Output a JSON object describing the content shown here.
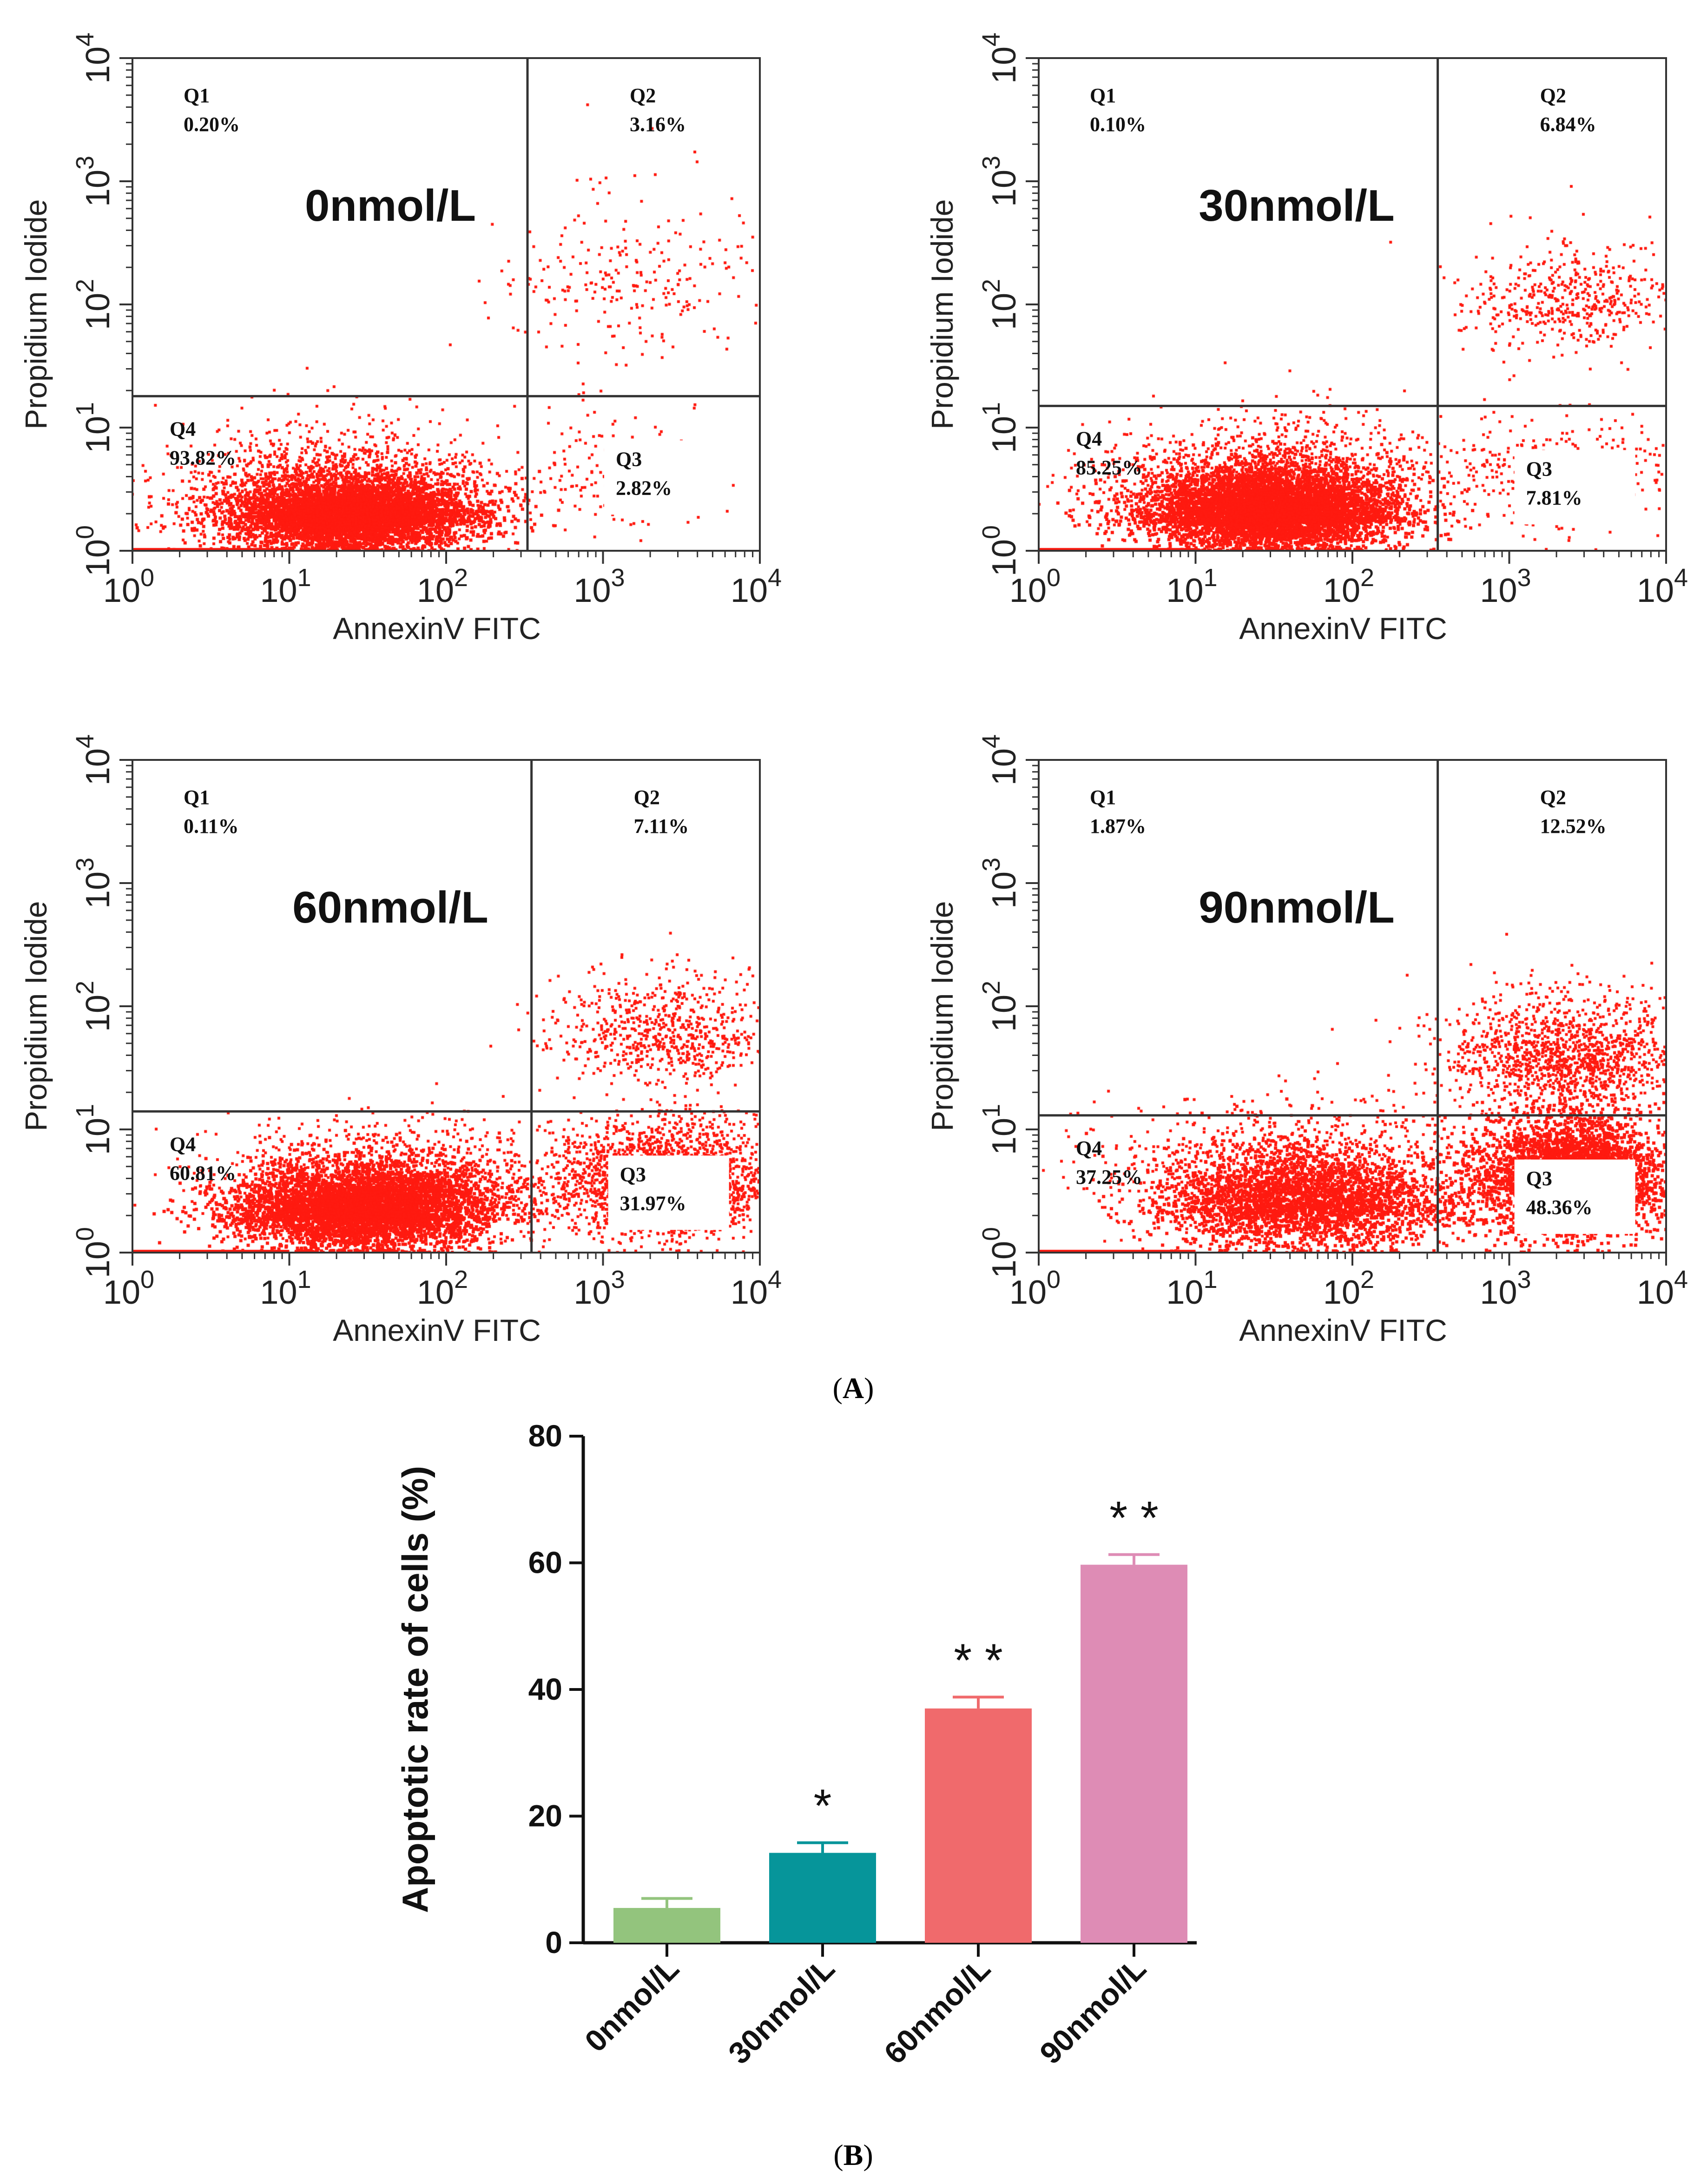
{
  "figure": {
    "panel_a_label": "A",
    "panel_b_label": "B"
  },
  "chart_data": [
    {
      "type": "scatter",
      "subtype": "flow-cytometry-quadrant",
      "dose_label": "0nmol/L",
      "xlabel": "AnnexinV FITC",
      "ylabel": "Propidium Iodide",
      "x_scale": "log",
      "y_scale": "log",
      "xlim": [
        1,
        10000
      ],
      "ylim": [
        1,
        10000
      ],
      "x_ticks": [
        {
          "base": "10",
          "exp": "0",
          "value": 1
        },
        {
          "base": "10",
          "exp": "1",
          "value": 10
        },
        {
          "base": "10",
          "exp": "2",
          "value": 100
        },
        {
          "base": "10",
          "exp": "3",
          "value": 1000
        },
        {
          "base": "10",
          "exp": "4",
          "value": 10000
        }
      ],
      "y_ticks": [
        {
          "base": "10",
          "exp": "0",
          "value": 1
        },
        {
          "base": "10",
          "exp": "1",
          "value": 10
        },
        {
          "base": "10",
          "exp": "2",
          "value": 100
        },
        {
          "base": "10",
          "exp": "3",
          "value": 1000
        },
        {
          "base": "10",
          "exp": "4",
          "value": 10000
        }
      ],
      "gate": {
        "x": 330,
        "y": 18
      },
      "quadrants": [
        {
          "name": "Q1",
          "percent": "0.20%"
        },
        {
          "name": "Q2",
          "percent": "3.16%"
        },
        {
          "name": "Q3",
          "percent": "2.82%"
        },
        {
          "name": "Q4",
          "percent": "93.82%"
        }
      ],
      "point_color": "#ff1a10",
      "populations": [
        {
          "cx": 25,
          "cy": 1.6,
          "sx": 0.38,
          "sy": 0.18,
          "n": 5500,
          "dense": true
        },
        {
          "cx": 20,
          "cy": 2.2,
          "sx": 0.55,
          "sy": 0.32,
          "n": 1500
        },
        {
          "cx": 1500,
          "cy": 100,
          "sx": 0.45,
          "sy": 0.45,
          "n": 250
        },
        {
          "cx": 1200,
          "cy": 3,
          "sx": 0.4,
          "sy": 0.35,
          "n": 150
        }
      ]
    },
    {
      "type": "scatter",
      "subtype": "flow-cytometry-quadrant",
      "dose_label": "30nmol/L",
      "xlabel": "AnnexinV FITC",
      "ylabel": "Propidium Iodide",
      "x_scale": "log",
      "y_scale": "log",
      "xlim": [
        1,
        10000
      ],
      "ylim": [
        1,
        10000
      ],
      "x_ticks": [
        {
          "base": "10",
          "exp": "0",
          "value": 1
        },
        {
          "base": "10",
          "exp": "1",
          "value": 10
        },
        {
          "base": "10",
          "exp": "2",
          "value": 100
        },
        {
          "base": "10",
          "exp": "3",
          "value": 1000
        },
        {
          "base": "10",
          "exp": "4",
          "value": 10000
        }
      ],
      "y_ticks": [
        {
          "base": "10",
          "exp": "0",
          "value": 1
        },
        {
          "base": "10",
          "exp": "1",
          "value": 10
        },
        {
          "base": "10",
          "exp": "2",
          "value": 100
        },
        {
          "base": "10",
          "exp": "3",
          "value": 1000
        },
        {
          "base": "10",
          "exp": "4",
          "value": 10000
        }
      ],
      "gate": {
        "x": 350,
        "y": 15
      },
      "quadrants": [
        {
          "name": "Q1",
          "percent": "0.10%"
        },
        {
          "name": "Q2",
          "percent": "6.84%"
        },
        {
          "name": "Q3",
          "percent": "7.81%"
        },
        {
          "name": "Q4",
          "percent": "85.25%"
        }
      ],
      "point_color": "#ff1a10",
      "populations": [
        {
          "cx": 30,
          "cy": 1.7,
          "sx": 0.4,
          "sy": 0.2,
          "n": 5500,
          "dense": true
        },
        {
          "cx": 30,
          "cy": 2.5,
          "sx": 0.5,
          "sy": 0.3,
          "n": 1800
        },
        {
          "cx": 2500,
          "cy": 80,
          "sx": 0.35,
          "sy": 0.3,
          "n": 500
        },
        {
          "cx": 2000,
          "cy": 3,
          "sx": 0.4,
          "sy": 0.3,
          "n": 400
        }
      ]
    },
    {
      "type": "scatter",
      "subtype": "flow-cytometry-quadrant",
      "dose_label": "60nmol/L",
      "xlabel": "AnnexinV FITC",
      "ylabel": "Propidium Iodide",
      "x_scale": "log",
      "y_scale": "log",
      "xlim": [
        1,
        10000
      ],
      "ylim": [
        1,
        10000
      ],
      "x_ticks": [
        {
          "base": "10",
          "exp": "0",
          "value": 1
        },
        {
          "base": "10",
          "exp": "1",
          "value": 10
        },
        {
          "base": "10",
          "exp": "2",
          "value": 100
        },
        {
          "base": "10",
          "exp": "3",
          "value": 1000
        },
        {
          "base": "10",
          "exp": "4",
          "value": 10000
        }
      ],
      "y_ticks": [
        {
          "base": "10",
          "exp": "0",
          "value": 1
        },
        {
          "base": "10",
          "exp": "1",
          "value": 10
        },
        {
          "base": "10",
          "exp": "2",
          "value": 100
        },
        {
          "base": "10",
          "exp": "3",
          "value": 1000
        },
        {
          "base": "10",
          "exp": "4",
          "value": 10000
        }
      ],
      "gate": {
        "x": 350,
        "y": 14
      },
      "quadrants": [
        {
          "name": "Q1",
          "percent": "0.11%"
        },
        {
          "name": "Q2",
          "percent": "7.11%"
        },
        {
          "name": "Q3",
          "percent": "31.97%"
        },
        {
          "name": "Q4",
          "percent": "60.81%"
        }
      ],
      "point_color": "#ff1a10",
      "populations": [
        {
          "cx": 30,
          "cy": 1.8,
          "sx": 0.4,
          "sy": 0.22,
          "n": 5000,
          "dense": true
        },
        {
          "cx": 40,
          "cy": 2.5,
          "sx": 0.55,
          "sy": 0.3,
          "n": 1500
        },
        {
          "cx": 2500,
          "cy": 45,
          "sx": 0.35,
          "sy": 0.3,
          "n": 700
        },
        {
          "cx": 2500,
          "cy": 2.8,
          "sx": 0.35,
          "sy": 0.3,
          "n": 2500
        }
      ]
    },
    {
      "type": "scatter",
      "subtype": "flow-cytometry-quadrant",
      "dose_label": "90nmol/L",
      "xlabel": "AnnexinV FITC",
      "ylabel": "Propidium Iodide",
      "x_scale": "log",
      "y_scale": "log",
      "xlim": [
        1,
        10000
      ],
      "ylim": [
        1,
        10000
      ],
      "x_ticks": [
        {
          "base": "10",
          "exp": "0",
          "value": 1
        },
        {
          "base": "10",
          "exp": "1",
          "value": 10
        },
        {
          "base": "10",
          "exp": "2",
          "value": 100
        },
        {
          "base": "10",
          "exp": "3",
          "value": 1000
        },
        {
          "base": "10",
          "exp": "4",
          "value": 10000
        }
      ],
      "y_ticks": [
        {
          "base": "10",
          "exp": "0",
          "value": 1
        },
        {
          "base": "10",
          "exp": "1",
          "value": 10
        },
        {
          "base": "10",
          "exp": "2",
          "value": 100
        },
        {
          "base": "10",
          "exp": "3",
          "value": 1000
        },
        {
          "base": "10",
          "exp": "4",
          "value": 10000
        }
      ],
      "gate": {
        "x": 350,
        "y": 13
      },
      "quadrants": [
        {
          "name": "Q1",
          "percent": "1.87%"
        },
        {
          "name": "Q2",
          "percent": "12.52%"
        },
        {
          "name": "Q3",
          "percent": "48.36%"
        },
        {
          "name": "Q4",
          "percent": "37.25%"
        }
      ],
      "point_color": "#ff1a10",
      "populations": [
        {
          "cx": 50,
          "cy": 2,
          "sx": 0.45,
          "sy": 0.25,
          "n": 2800,
          "dense": true
        },
        {
          "cx": 40,
          "cy": 3,
          "sx": 0.6,
          "sy": 0.35,
          "n": 1200
        },
        {
          "cx": 2500,
          "cy": 3,
          "sx": 0.3,
          "sy": 0.3,
          "n": 4000,
          "dense": true
        },
        {
          "cx": 2500,
          "cy": 30,
          "sx": 0.4,
          "sy": 0.3,
          "n": 1400
        }
      ]
    },
    {
      "type": "bar",
      "categories": [
        "0nmol/L",
        "30nmol/L",
        "60nmol/L",
        "90nmol/L"
      ],
      "values": [
        5.5,
        14.2,
        37,
        59.7
      ],
      "errors": [
        1.5,
        1.6,
        1.8,
        1.6
      ],
      "significance": [
        "",
        "*",
        "* *",
        "* *"
      ],
      "colors": [
        "#93c47d",
        "#06959a",
        "#f06a6c",
        "#de8cb5"
      ],
      "ylabel": "Apoptotic rate of cells (%)",
      "xlabel": "",
      "ylim": [
        0,
        80
      ],
      "y_ticks": [
        "0",
        "20",
        "40",
        "60",
        "80"
      ]
    }
  ]
}
